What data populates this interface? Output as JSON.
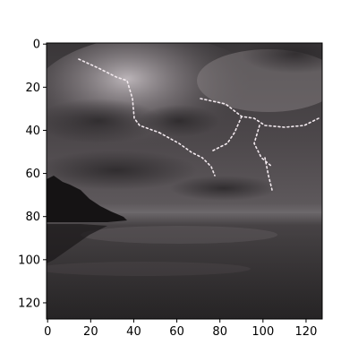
{
  "chart_data": {
    "type": "heatmap",
    "description_of_content": "",
    "title": "",
    "xlabel": "",
    "ylabel": "",
    "xlim": [
      -0.5,
      127.5
    ],
    "ylim": [
      127.5,
      -0.5
    ],
    "image_shape": [
      128,
      128
    ],
    "x_ticks": [
      0,
      20,
      40,
      60,
      80,
      100,
      120
    ],
    "y_ticks": [
      0,
      20,
      40,
      60,
      80,
      100,
      120
    ],
    "x_tick_labels": [
      "0",
      "20",
      "40",
      "60",
      "80",
      "100",
      "120"
    ],
    "y_tick_labels": [
      "0",
      "20",
      "40",
      "60",
      "80",
      "100",
      "120"
    ],
    "grid": false,
    "legend": "none",
    "colors": {
      "sky_dark": "#2e2c2e",
      "sky_mid": "#5a5558",
      "cloud_light": "#9a9497",
      "horizon": "#6f6b6e",
      "water": "#2a2829",
      "lightning": "#f2e9ee",
      "tree": "#151314"
    }
  }
}
